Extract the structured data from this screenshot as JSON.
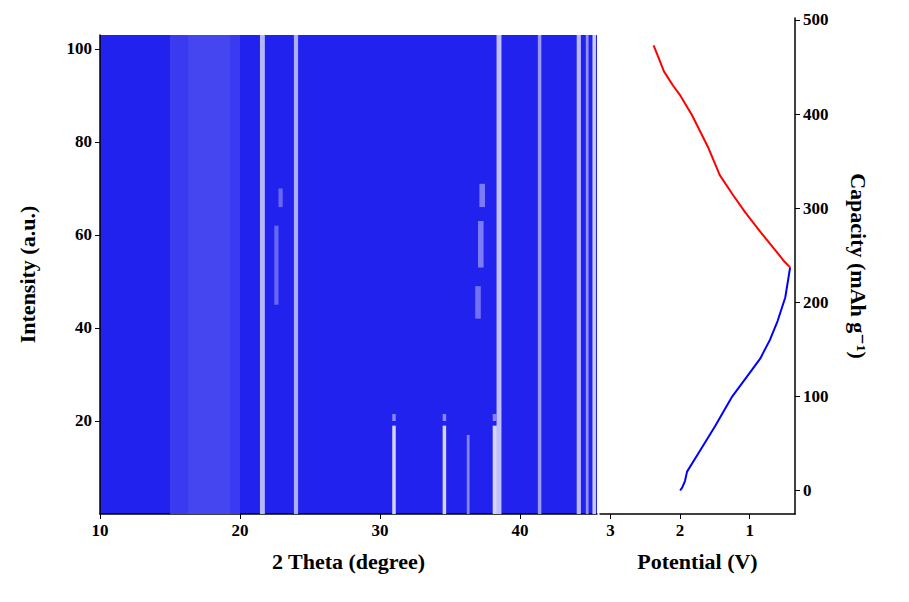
{
  "chart_data": [
    {
      "type": "heatmap",
      "xlabel": "2 Theta (degree)",
      "ylabel": "Intensity (a.u.)",
      "xlim": [
        10,
        45.5
      ],
      "ylim": [
        0,
        103
      ],
      "xticks": [
        10,
        20,
        30,
        40
      ],
      "yticks": [
        20,
        40,
        60,
        80,
        100
      ],
      "intensity_range": [
        0,
        1
      ],
      "peaks": [
        {
          "two_theta": 17.5,
          "width": 5.0,
          "from": 0,
          "to": 103,
          "intensity": 0.12
        },
        {
          "two_theta": 17.8,
          "width": 3.0,
          "from": 0,
          "to": 103,
          "intensity": 0.18
        },
        {
          "two_theta": 21.6,
          "width": 0.35,
          "from": 0,
          "to": 103,
          "intensity": 0.75
        },
        {
          "two_theta": 24.0,
          "width": 0.3,
          "from": 0,
          "to": 103,
          "intensity": 0.7
        },
        {
          "two_theta": 38.5,
          "width": 0.35,
          "from": 0,
          "to": 103,
          "intensity": 0.8
        },
        {
          "two_theta": 41.4,
          "width": 0.25,
          "from": 0,
          "to": 103,
          "intensity": 0.6
        },
        {
          "two_theta": 44.2,
          "width": 0.3,
          "from": 0,
          "to": 103,
          "intensity": 0.75
        },
        {
          "two_theta": 44.8,
          "width": 0.2,
          "from": 0,
          "to": 103,
          "intensity": 0.55
        },
        {
          "two_theta": 45.3,
          "width": 0.25,
          "from": 0,
          "to": 103,
          "intensity": 0.85
        },
        {
          "two_theta": 31.0,
          "width": 0.25,
          "from": 0,
          "to": 19,
          "intensity": 0.9
        },
        {
          "two_theta": 34.6,
          "width": 0.25,
          "from": 0,
          "to": 19,
          "intensity": 0.9
        },
        {
          "two_theta": 36.3,
          "width": 0.2,
          "from": 0,
          "to": 17,
          "intensity": 0.5
        },
        {
          "two_theta": 38.2,
          "width": 0.3,
          "from": 0,
          "to": 19,
          "intensity": 0.9
        },
        {
          "two_theta": 31.0,
          "width": 0.25,
          "from": 20,
          "to": 21.5,
          "intensity": 0.5
        },
        {
          "two_theta": 34.6,
          "width": 0.25,
          "from": 20,
          "to": 21.5,
          "intensity": 0.5
        },
        {
          "two_theta": 38.2,
          "width": 0.3,
          "from": 20,
          "to": 21.5,
          "intensity": 0.5
        },
        {
          "two_theta": 22.6,
          "width": 0.3,
          "from": 45,
          "to": 62,
          "intensity": 0.35
        },
        {
          "two_theta": 22.9,
          "width": 0.3,
          "from": 66,
          "to": 70,
          "intensity": 0.35
        },
        {
          "two_theta": 37.0,
          "width": 0.4,
          "from": 42,
          "to": 49,
          "intensity": 0.4
        },
        {
          "two_theta": 37.2,
          "width": 0.4,
          "from": 53,
          "to": 63,
          "intensity": 0.45
        },
        {
          "two_theta": 37.3,
          "width": 0.4,
          "from": 66,
          "to": 71,
          "intensity": 0.45
        }
      ]
    },
    {
      "type": "line",
      "xlabel": "Potential (V)",
      "ylabel": "Capacity (mAh g⁻¹)",
      "xlim": [
        3.15,
        0.35
      ],
      "ylim": [
        -25,
        502
      ],
      "xticks": [
        3,
        2,
        1
      ],
      "yticks": [
        0,
        100,
        200,
        300,
        400,
        500
      ],
      "series": [
        {
          "color": "#0000ff",
          "x": [
            2.0,
            1.97,
            1.93,
            1.9,
            1.75,
            1.5,
            1.25,
            1.0,
            0.85,
            0.71,
            0.6,
            0.49,
            0.42
          ],
          "values": [
            0,
            3,
            10,
            20,
            38,
            68,
            100,
            125,
            140,
            160,
            180,
            205,
            237
          ]
        },
        {
          "color": "#ff0000",
          "x": [
            0.42,
            0.5,
            0.64,
            0.85,
            1.07,
            1.25,
            1.43,
            1.6,
            1.83,
            2.0,
            2.1,
            2.23,
            2.38
          ],
          "values": [
            237,
            243,
            256,
            275,
            296,
            315,
            335,
            365,
            399,
            420,
            430,
            445,
            473
          ]
        }
      ]
    }
  ]
}
